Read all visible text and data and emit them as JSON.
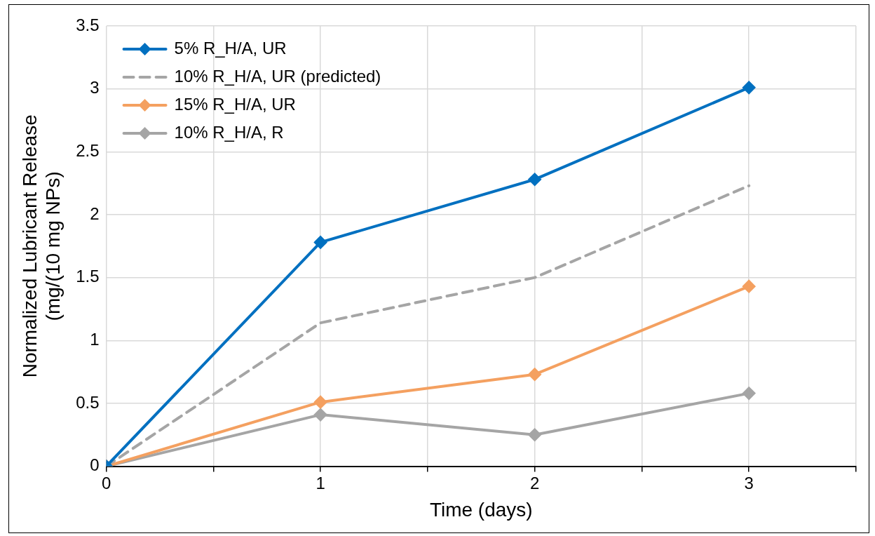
{
  "chart_data": {
    "type": "line",
    "xlabel": "Time (days)",
    "ylabel": "Normalized Lubricant Release\n(mg/(10 mg NPs)",
    "x": [
      0,
      1,
      2,
      3
    ],
    "series": [
      {
        "name": "5% R_H/A, UR",
        "color": "#0070c0",
        "values": [
          0,
          1.78,
          2.28,
          3.01
        ]
      },
      {
        "name": "10% R_H/A, UR (predicted)",
        "color": "#a5a5a5",
        "values": [
          0,
          1.14,
          1.5,
          2.23
        ],
        "line_style": "dashed",
        "marker": "none"
      },
      {
        "name": "15% R_H/A, UR",
        "color": "#f4a060",
        "values": [
          0,
          0.51,
          0.73,
          1.43
        ]
      },
      {
        "name": "10% R_H/A, R",
        "color": "#a5a5a5",
        "values": [
          0,
          0.41,
          0.25,
          0.58
        ]
      }
    ],
    "xlim": [
      0,
      3.5
    ],
    "xticks": [
      0,
      {
        "value": 0.5,
        "label": null
      },
      1,
      {
        "value": 1.5,
        "label": null
      },
      2,
      {
        "value": 2.5,
        "label": null
      },
      3,
      {
        "value": 3.5,
        "label": null
      }
    ],
    "ylim": [
      0,
      3.5
    ],
    "yticks": [
      0,
      0.5,
      1,
      1.5,
      2,
      2.5,
      3,
      3.5
    ],
    "grid": true,
    "legend": "top left",
    "marker": "diamond",
    "line_style": "solid"
  }
}
